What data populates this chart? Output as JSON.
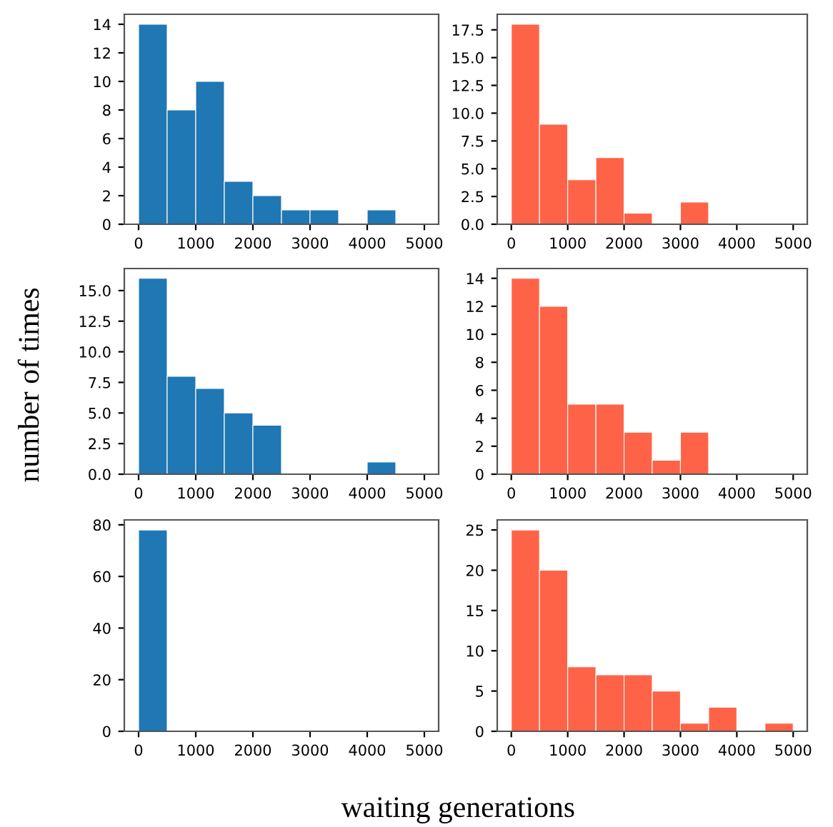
{
  "chart_data": [
    {
      "type": "histogram",
      "bins": [
        0,
        500,
        1000,
        1500,
        2000,
        2500,
        3000,
        3500,
        4000,
        4500,
        5000
      ],
      "values": [
        14,
        8,
        10,
        3,
        2,
        1,
        1,
        0,
        1,
        0
      ],
      "color": "#1f77b4",
      "xlim": [
        -250,
        5250
      ],
      "ylim": [
        0,
        14.7
      ],
      "xticks": [
        0,
        1000,
        2000,
        3000,
        4000,
        5000
      ],
      "yticks": [
        0,
        2,
        4,
        6,
        8,
        10,
        12,
        14
      ]
    },
    {
      "type": "histogram",
      "bins": [
        0,
        500,
        1000,
        1500,
        2000,
        2500,
        3000,
        3500,
        4000,
        4500,
        5000
      ],
      "values": [
        18,
        9,
        4,
        6,
        1,
        0,
        2,
        0,
        0,
        0
      ],
      "color": "#ff6347",
      "xlim": [
        -250,
        5250
      ],
      "ylim": [
        0,
        18.9
      ],
      "xticks": [
        0,
        1000,
        2000,
        3000,
        4000,
        5000
      ],
      "yticks": [
        {
          "value": 0,
          "label": "0.0"
        },
        {
          "value": 2.5,
          "label": "2.5"
        },
        {
          "value": 5,
          "label": "5.0"
        },
        {
          "value": 7.5,
          "label": "7.5"
        },
        {
          "value": 10,
          "label": "10.0"
        },
        {
          "value": 12.5,
          "label": "12.5"
        },
        {
          "value": 15,
          "label": "15.0"
        },
        {
          "value": 17.5,
          "label": "17.5"
        }
      ]
    },
    {
      "type": "histogram",
      "bins": [
        0,
        500,
        1000,
        1500,
        2000,
        2500,
        3000,
        3500,
        4000,
        4500,
        5000
      ],
      "values": [
        16,
        8,
        7,
        5,
        4,
        0,
        0,
        0,
        1,
        0
      ],
      "color": "#1f77b4",
      "xlim": [
        -250,
        5250
      ],
      "ylim": [
        0,
        16.8
      ],
      "xticks": [
        0,
        1000,
        2000,
        3000,
        4000,
        5000
      ],
      "yticks": [
        {
          "value": 0,
          "label": "0.0"
        },
        {
          "value": 2.5,
          "label": "2.5"
        },
        {
          "value": 5,
          "label": "5.0"
        },
        {
          "value": 7.5,
          "label": "7.5"
        },
        {
          "value": 10,
          "label": "10.0"
        },
        {
          "value": 12.5,
          "label": "12.5"
        },
        {
          "value": 15,
          "label": "15.0"
        }
      ],
      "ylabel": "number of times"
    },
    {
      "type": "histogram",
      "bins": [
        0,
        500,
        1000,
        1500,
        2000,
        2500,
        3000,
        3500,
        4000,
        4500,
        5000
      ],
      "values": [
        14,
        12,
        5,
        5,
        3,
        1,
        3,
        0,
        0,
        0
      ],
      "color": "#ff6347",
      "xlim": [
        -250,
        5250
      ],
      "ylim": [
        0,
        14.7
      ],
      "xticks": [
        0,
        1000,
        2000,
        3000,
        4000,
        5000
      ],
      "yticks": [
        0,
        2,
        4,
        6,
        8,
        10,
        12,
        14
      ]
    },
    {
      "type": "histogram",
      "bins": [
        0,
        500,
        1000,
        1500,
        2000,
        2500,
        3000,
        3500,
        4000,
        4500,
        5000
      ],
      "values": [
        78,
        0,
        0,
        0,
        0,
        0,
        0,
        0,
        0,
        0
      ],
      "color": "#1f77b4",
      "xlim": [
        -250,
        5250
      ],
      "ylim": [
        0,
        81.9
      ],
      "xticks": [
        0,
        1000,
        2000,
        3000,
        4000,
        5000
      ],
      "yticks": [
        0,
        20,
        40,
        60,
        80
      ]
    },
    {
      "type": "histogram",
      "bins": [
        0,
        500,
        1000,
        1500,
        2000,
        2500,
        3000,
        3500,
        4000,
        4500,
        5000
      ],
      "values": [
        25,
        20,
        8,
        7,
        7,
        5,
        1,
        3,
        0,
        1
      ],
      "color": "#ff6347",
      "xlim": [
        -250,
        5250
      ],
      "ylim": [
        0,
        26.25
      ],
      "xticks": [
        0,
        1000,
        2000,
        3000,
        4000,
        5000
      ],
      "yticks": [
        0,
        5,
        10,
        15,
        20,
        25
      ],
      "xlabel": "waiting generations"
    }
  ]
}
